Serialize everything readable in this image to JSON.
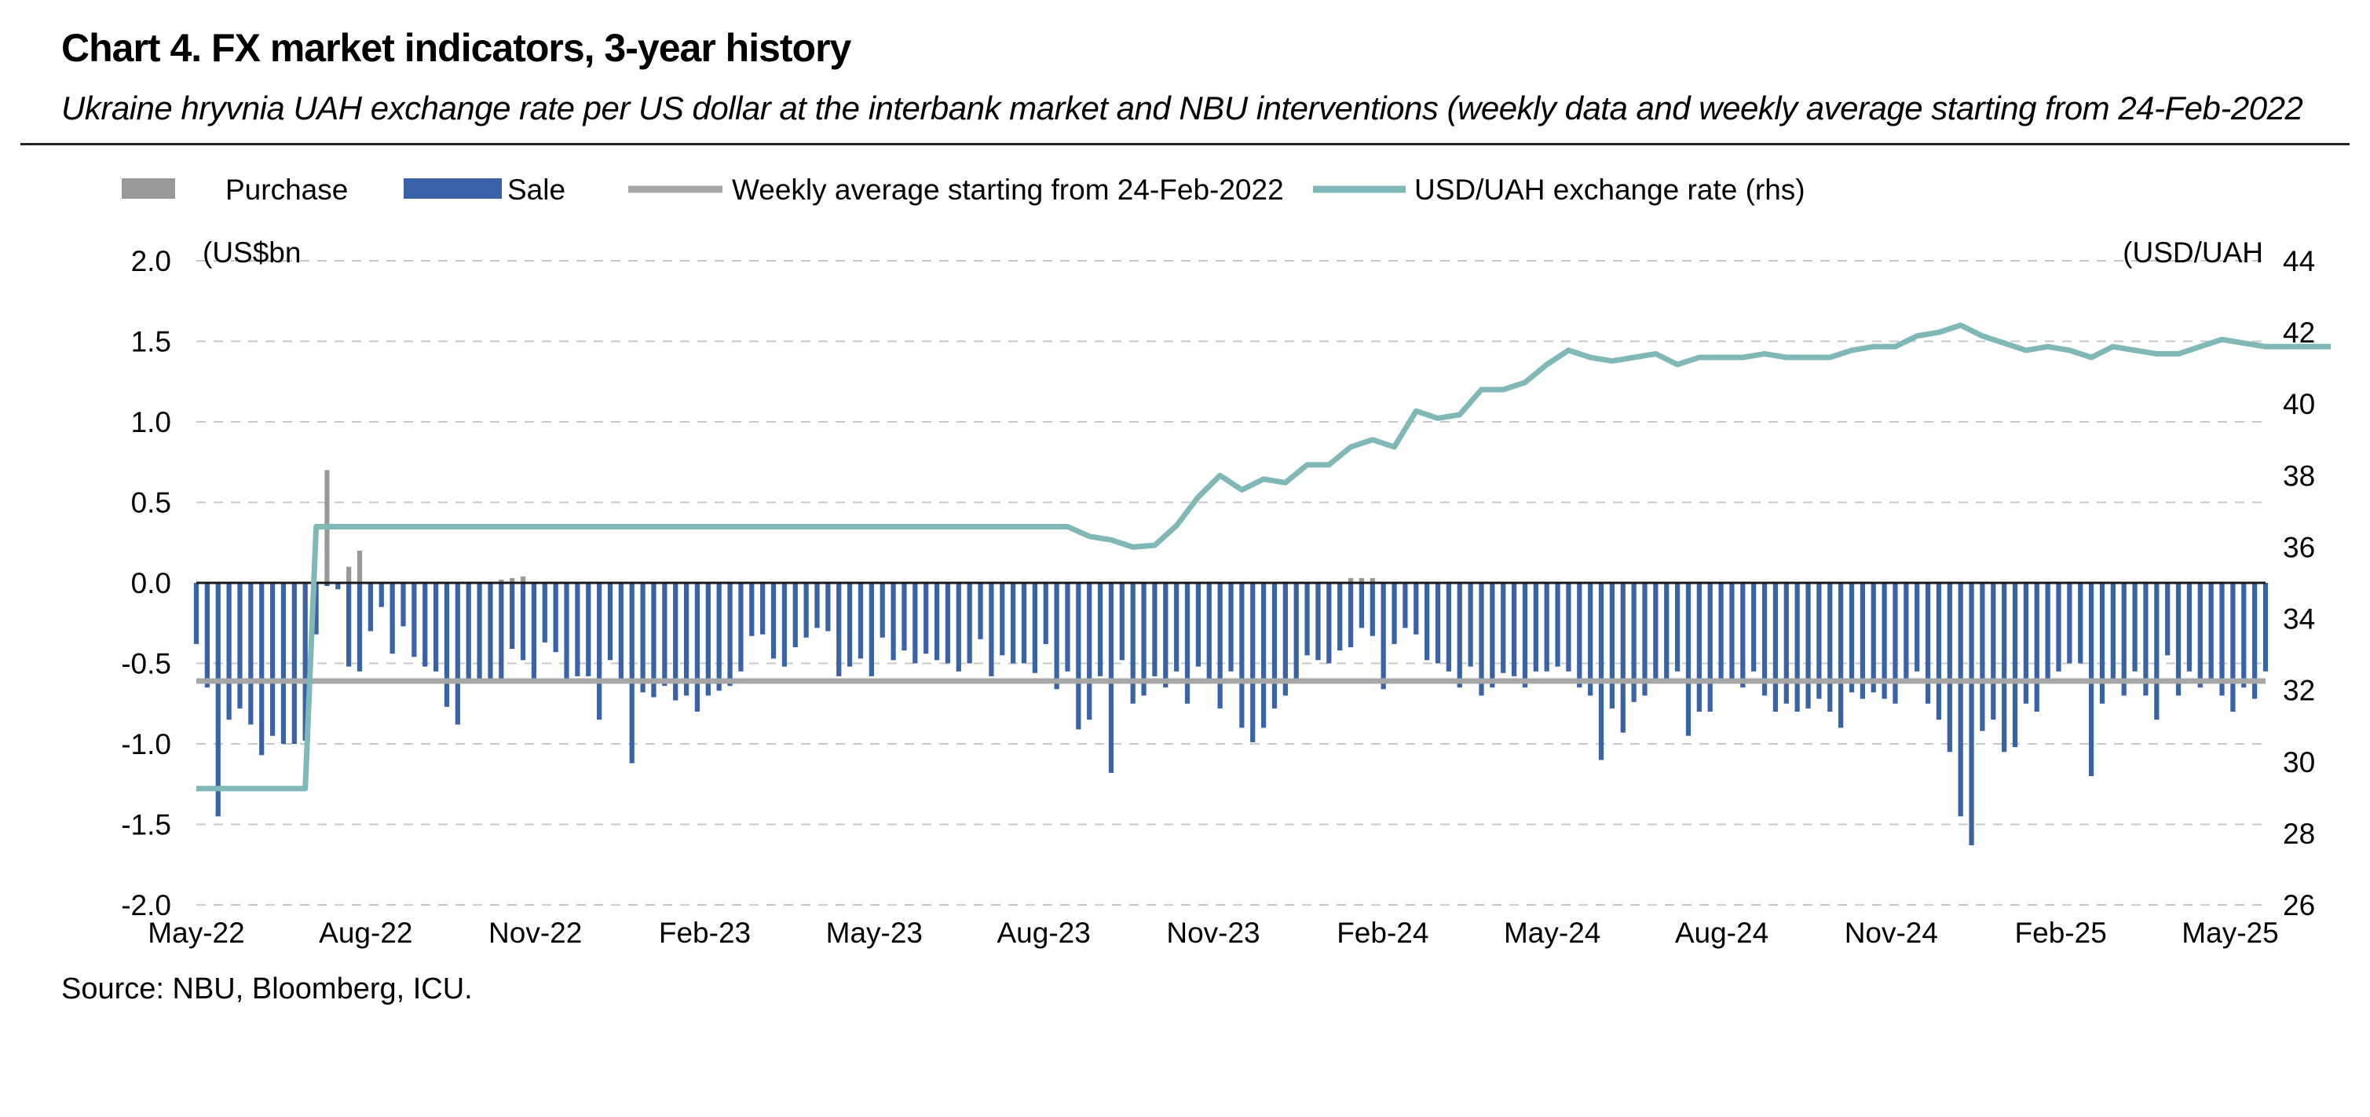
{
  "header": {
    "title": "Chart 4. FX market indicators, 3-year history",
    "subtitle": "Ukraine hryvnia UAH exchange rate per US dollar at the interbank market and NBU interventions (weekly data and weekly average starting from 24-Feb-2022"
  },
  "footer": {
    "source": "Source: NBU, Bloomberg, ICU."
  },
  "colors": {
    "purchase": "#999999",
    "sale": "#3a62a8",
    "average": "#a6a6a6",
    "fx": "#7fb8b6",
    "grid": "#c8c8c8"
  },
  "chart_data": {
    "type": "bar+line",
    "legend_position": "top",
    "y_left_unit": "(US$bn",
    "y_right_unit": "(USD/UAH",
    "ylim_left": [
      -2.0,
      2.0
    ],
    "ylim_right": [
      26,
      44
    ],
    "y_left_ticks": [
      "2.0",
      "1.5",
      "1.0",
      "0.5",
      "0.0",
      "-0.5",
      "-1.0",
      "-1.5",
      "-2.0"
    ],
    "y_right_ticks": [
      "44",
      "42",
      "40",
      "38",
      "36",
      "34",
      "32",
      "30",
      "28",
      "26"
    ],
    "x_ticks": [
      "May-22",
      "Aug-22",
      "Nov-22",
      "Feb-23",
      "May-23",
      "Aug-23",
      "Nov-23",
      "Feb-24",
      "May-24",
      "Aug-24",
      "Nov-24",
      "Feb-25",
      "May-25"
    ],
    "grid": "horizontal-dashed",
    "legend": [
      {
        "name": "Purchase",
        "kind": "bar"
      },
      {
        "name": "Sale",
        "kind": "bar"
      },
      {
        "name": "Weekly average starting from 24-Feb-2022",
        "kind": "line"
      },
      {
        "name": "USD/UAH exchange rate (rhs)",
        "kind": "line"
      }
    ],
    "weekly_average": -0.61,
    "sale": [
      -0.38,
      -0.65,
      -1.45,
      -0.85,
      -0.78,
      -0.88,
      -1.07,
      -0.95,
      -1.0,
      -1.0,
      -0.98,
      -0.32,
      -0.02,
      -0.04,
      -0.52,
      -0.55,
      -0.3,
      -0.15,
      -0.44,
      -0.27,
      -0.46,
      -0.52,
      -0.55,
      -0.77,
      -0.88,
      -0.62,
      -0.6,
      -0.62,
      -0.6,
      -0.41,
      -0.48,
      -0.62,
      -0.37,
      -0.43,
      -0.6,
      -0.58,
      -0.58,
      -0.85,
      -0.48,
      -0.6,
      -1.12,
      -0.68,
      -0.71,
      -0.64,
      -0.73,
      -0.7,
      -0.8,
      -0.7,
      -0.67,
      -0.64,
      -0.55,
      -0.33,
      -0.32,
      -0.47,
      -0.52,
      -0.4,
      -0.34,
      -0.28,
      -0.3,
      -0.58,
      -0.52,
      -0.47,
      -0.58,
      -0.34,
      -0.48,
      -0.42,
      -0.5,
      -0.44,
      -0.48,
      -0.5,
      -0.55,
      -0.5,
      -0.35,
      -0.58,
      -0.45,
      -0.5,
      -0.5,
      -0.56,
      -0.38,
      -0.66,
      -0.55,
      -0.91,
      -0.85,
      -0.58,
      -1.18,
      -0.48,
      -0.75,
      -0.7,
      -0.58,
      -0.65,
      -0.55,
      -0.75,
      -0.52,
      -0.6,
      -0.78,
      -0.55,
      -0.9,
      -0.99,
      -0.9,
      -0.78,
      -0.7,
      -0.6,
      -0.45,
      -0.48,
      -0.5,
      -0.42,
      -0.4,
      -0.28,
      -0.33,
      -0.66,
      -0.38,
      -0.28,
      -0.32,
      -0.48,
      -0.5,
      -0.55,
      -0.65,
      -0.52,
      -0.7,
      -0.65,
      -0.56,
      -0.58,
      -0.65,
      -0.55,
      -0.55,
      -0.52,
      -0.55,
      -0.65,
      -0.7,
      -1.1,
      -0.78,
      -0.93,
      -0.74,
      -0.7,
      -0.6,
      -0.62,
      -0.55,
      -0.95,
      -0.8,
      -0.8,
      -0.6,
      -0.62,
      -0.65,
      -0.55,
      -0.7,
      -0.8,
      -0.75,
      -0.8,
      -0.78,
      -0.72,
      -0.8,
      -0.9,
      -0.68,
      -0.72,
      -0.68,
      -0.72,
      -0.75,
      -0.6,
      -0.55,
      -0.75,
      -0.85,
      -1.05,
      -1.45,
      -1.63,
      -0.92,
      -0.85,
      -1.05,
      -1.02,
      -0.75,
      -0.8,
      -0.6,
      -0.55,
      -0.5,
      -0.5,
      -1.2,
      -0.75,
      -0.6,
      -0.7,
      -0.55,
      -0.7,
      -0.85,
      -0.45,
      -0.7,
      -0.55,
      -0.65,
      -0.6,
      -0.7,
      -0.8,
      -0.65,
      -0.72,
      -0.55
    ],
    "purchase": [
      0,
      0,
      0,
      0,
      0,
      0,
      0,
      0,
      0,
      0,
      0,
      0,
      0.7,
      0,
      0.1,
      0.2,
      0,
      0,
      0,
      0,
      0,
      0,
      0,
      0,
      0,
      0,
      0,
      0,
      0.02,
      0.03,
      0.04,
      0,
      0,
      0,
      0,
      0,
      0,
      0,
      0,
      0,
      0,
      0,
      0,
      0,
      0,
      0,
      0,
      0,
      0,
      0,
      0,
      0,
      0,
      0,
      0,
      0,
      0,
      0,
      0,
      0,
      0,
      0,
      0,
      0,
      0,
      0,
      0,
      0,
      0,
      0,
      0,
      0,
      0,
      0,
      0,
      0,
      0,
      0,
      0,
      0,
      0,
      0,
      0,
      0,
      0,
      0,
      0,
      0,
      0,
      0,
      0,
      0,
      0,
      0,
      0,
      0,
      0,
      0,
      0,
      0,
      0,
      0,
      0,
      0,
      0,
      0,
      0.03,
      0.03,
      0.03,
      0,
      0,
      0,
      0,
      0,
      0,
      0,
      0,
      0,
      0,
      0,
      0,
      0,
      0,
      0,
      0,
      0,
      0,
      0,
      0,
      0,
      0,
      0,
      0,
      0,
      0,
      0,
      0,
      0,
      0,
      0,
      0,
      0,
      0,
      0,
      0,
      0,
      0,
      0,
      0,
      0,
      0,
      0,
      0,
      0,
      0,
      0,
      0,
      0,
      0,
      0,
      0,
      0,
      0,
      0,
      0,
      0,
      0,
      0,
      0,
      0,
      0,
      0,
      0,
      0,
      0,
      0,
      0,
      0,
      0,
      0,
      0,
      0,
      0,
      0,
      0,
      0,
      0,
      0,
      0,
      0,
      0,
      0,
      0,
      0,
      0,
      0,
      0,
      0
    ],
    "fx_rate_weeks": [
      0,
      10,
      11,
      12,
      80,
      82,
      84,
      86,
      88,
      90,
      92,
      94,
      96,
      98,
      100,
      102,
      104,
      106,
      108,
      110,
      112,
      114,
      116,
      118,
      120,
      122,
      124,
      126,
      128,
      130,
      132,
      134,
      136,
      138,
      140,
      142,
      144,
      146,
      148,
      150,
      152,
      154,
      156,
      158,
      160,
      162,
      164,
      166,
      168,
      170,
      172,
      174,
      176,
      178,
      180,
      182,
      184,
      186,
      188,
      190,
      192,
      194,
      196
    ],
    "fx_rate": [
      29.25,
      29.25,
      36.57,
      36.57,
      36.57,
      36.3,
      36.2,
      36.0,
      36.05,
      36.6,
      37.4,
      38.0,
      37.6,
      37.9,
      37.8,
      38.3,
      38.3,
      38.8,
      39.0,
      38.8,
      39.8,
      39.6,
      39.7,
      40.4,
      40.4,
      40.6,
      41.1,
      41.5,
      41.3,
      41.2,
      41.3,
      41.4,
      41.1,
      41.3,
      41.3,
      41.3,
      41.4,
      41.3,
      41.3,
      41.3,
      41.5,
      41.6,
      41.6,
      41.9,
      42.0,
      42.2,
      41.9,
      41.7,
      41.5,
      41.6,
      41.5,
      41.3,
      41.6,
      41.5,
      41.4,
      41.4,
      41.6,
      41.8,
      41.7,
      41.6,
      41.6,
      41.6,
      41.6
    ]
  }
}
